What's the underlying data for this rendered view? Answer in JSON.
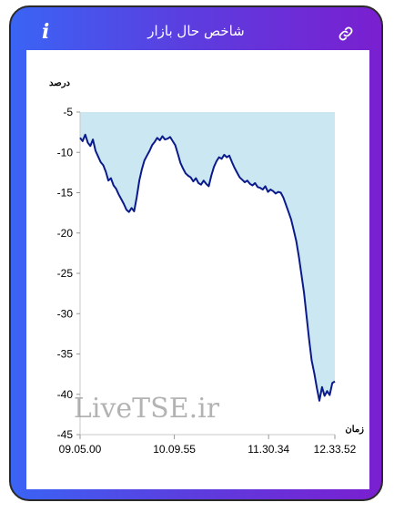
{
  "window": {
    "title": "شاخص حال بازار",
    "info_icon": "info-icon",
    "link_icon": "link-icon"
  },
  "colors": {
    "frame_gradient_start": "#3a64f5",
    "frame_gradient_end": "#7a1fd0",
    "area_fill": "#cbe7f1",
    "line": "#0a1a8a"
  },
  "chart_data": {
    "type": "area",
    "ylabel": "درصد",
    "xlabel": "زمان",
    "watermark": "LiveTSE.ir",
    "ylim": [
      -45,
      -5
    ],
    "yticks": [
      -5,
      -10,
      -15,
      -20,
      -25,
      -30,
      -35,
      -40,
      -45
    ],
    "xtick_labels": [
      "09.05.00",
      "10.09.55",
      "11.30.34",
      "12.33.52"
    ],
    "x_start": "09.05.00",
    "x_end": "12.33.52",
    "series": [
      {
        "values": [
          -8.2,
          -8.6,
          -7.8,
          -8.8,
          -9.2,
          -8.4,
          -9.8,
          -10.5,
          -11.2,
          -11.6,
          -12.4,
          -13.5,
          -13.2,
          -14.1,
          -14.5,
          -15.2,
          -15.8,
          -16.4,
          -17.1,
          -17.4,
          -16.9,
          -17.3,
          -15.6,
          -13.5,
          -12.1,
          -11.0,
          -10.4,
          -9.8,
          -9.1,
          -8.7,
          -8.2,
          -8.5,
          -8.0,
          -8.4,
          -8.3,
          -8.1,
          -8.6,
          -9.1,
          -10.2,
          -11.3,
          -12.0,
          -12.6,
          -12.9,
          -13.1,
          -13.6,
          -13.2,
          -13.8,
          -14.0,
          -13.5,
          -13.9,
          -14.2,
          -12.9,
          -11.8,
          -11.1,
          -10.6,
          -10.8,
          -10.3,
          -10.6,
          -10.4,
          -11.2,
          -11.9,
          -12.5,
          -13.1,
          -13.4,
          -13.7,
          -13.5,
          -13.9,
          -14.1,
          -13.8,
          -14.3,
          -14.4,
          -14.6,
          -14.2,
          -14.9,
          -14.6,
          -14.8,
          -15.1,
          -14.9,
          -15.0,
          -15.6,
          -16.5,
          -17.4,
          -18.3,
          -19.6,
          -21.0,
          -22.9,
          -25.1,
          -27.4,
          -30.3,
          -33.2,
          -35.8,
          -37.4,
          -39.2,
          -40.8,
          -39.1,
          -40.2,
          -39.6,
          -40.1,
          -38.6,
          -38.4
        ]
      }
    ]
  }
}
